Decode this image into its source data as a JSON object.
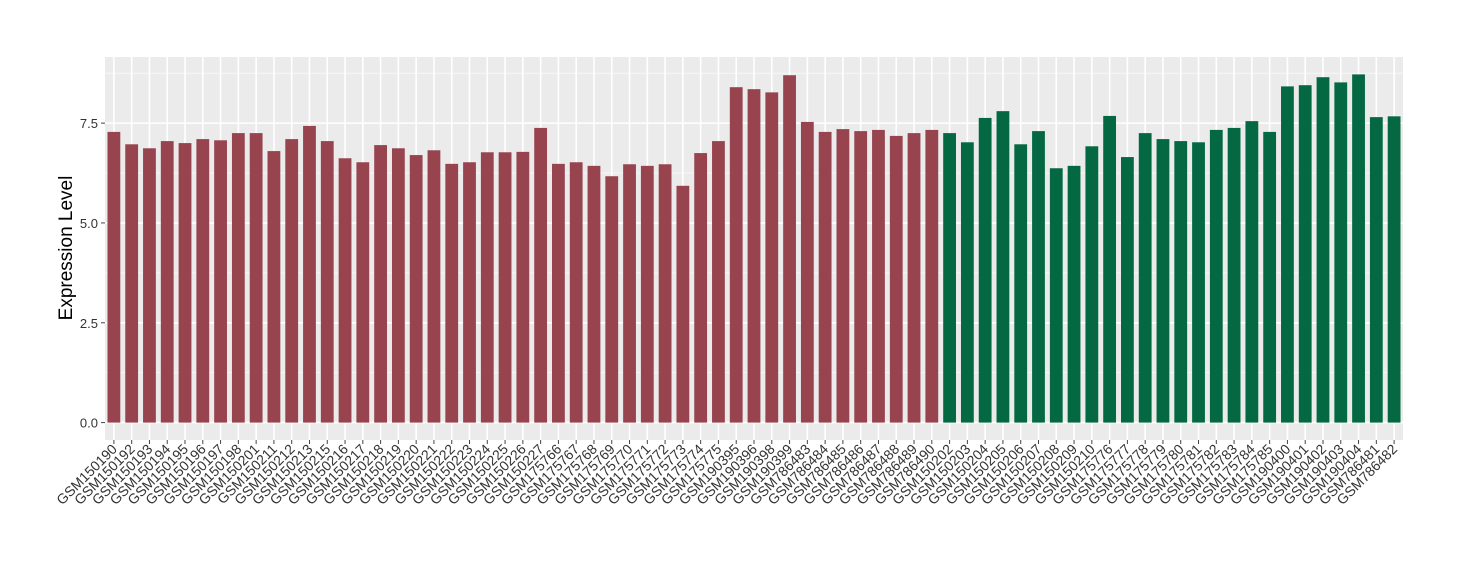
{
  "chart_data": {
    "type": "bar",
    "y_label": "Expression Level",
    "categories": [
      "GSM150190",
      "GSM150192",
      "GSM150193",
      "GSM150194",
      "GSM150195",
      "GSM150196",
      "GSM150197",
      "GSM150198",
      "GSM150201",
      "GSM150211",
      "GSM150212",
      "GSM150213",
      "GSM150215",
      "GSM150216",
      "GSM150217",
      "GSM150218",
      "GSM150219",
      "GSM150220",
      "GSM150221",
      "GSM150222",
      "GSM150223",
      "GSM150224",
      "GSM150225",
      "GSM150226",
      "GSM150227",
      "GSM175766",
      "GSM175767",
      "GSM175768",
      "GSM175769",
      "GSM175770",
      "GSM175771",
      "GSM175772",
      "GSM175773",
      "GSM175774",
      "GSM175775",
      "GSM190395",
      "GSM190396",
      "GSM190398",
      "GSM190399",
      "GSM786483",
      "GSM786484",
      "GSM786485",
      "GSM786486",
      "GSM786487",
      "GSM786488",
      "GSM786489",
      "GSM786490",
      "GSM150202",
      "GSM150203",
      "GSM150204",
      "GSM150205",
      "GSM150206",
      "GSM150207",
      "GSM150208",
      "GSM150209",
      "GSM150210",
      "GSM175776",
      "GSM175777",
      "GSM175778",
      "GSM175779",
      "GSM175780",
      "GSM175781",
      "GSM175782",
      "GSM175783",
      "GSM175784",
      "GSM175785",
      "GSM190400",
      "GSM190401",
      "GSM190402",
      "GSM190403",
      "GSM190404",
      "GSM786481",
      "GSM786482"
    ],
    "series": [
      {
        "color": "#97444f",
        "values": [
          7.28,
          6.97,
          6.87,
          7.05,
          7.0,
          7.1,
          7.07,
          7.25,
          7.25,
          6.8,
          7.1,
          7.43,
          7.05,
          6.62,
          6.52,
          6.95,
          6.87,
          6.7,
          6.82,
          6.48,
          6.52,
          6.77,
          6.77,
          6.78,
          7.38,
          6.48,
          6.52,
          6.43,
          6.17,
          6.47,
          6.43,
          6.47,
          5.93,
          6.75,
          7.05,
          8.4,
          8.35,
          8.27,
          8.7,
          7.53,
          7.28,
          7.35,
          7.3,
          7.33,
          7.18,
          7.25,
          7.33,
          null,
          null,
          null,
          null,
          null,
          null,
          null,
          null,
          null,
          null,
          null,
          null,
          null,
          null,
          null,
          null,
          null,
          null,
          null,
          null,
          null,
          null,
          null,
          null,
          null,
          null
        ]
      },
      {
        "color": "#046943",
        "values": [
          null,
          null,
          null,
          null,
          null,
          null,
          null,
          null,
          null,
          null,
          null,
          null,
          null,
          null,
          null,
          null,
          null,
          null,
          null,
          null,
          null,
          null,
          null,
          null,
          null,
          null,
          null,
          null,
          null,
          null,
          null,
          null,
          null,
          null,
          null,
          null,
          null,
          null,
          null,
          null,
          null,
          null,
          null,
          null,
          null,
          null,
          null,
          7.25,
          7.02,
          7.63,
          7.8,
          6.97,
          7.3,
          6.37,
          6.43,
          6.92,
          7.68,
          6.65,
          7.25,
          7.1,
          7.05,
          7.02,
          7.33,
          7.38,
          7.55,
          7.28,
          8.42,
          8.45,
          8.65,
          8.52,
          8.72,
          7.65,
          7.67
        ]
      }
    ],
    "ylim": [
      -0.436,
      9.156
    ],
    "yticks": [
      {
        "value": 0,
        "label": "0.0"
      },
      2.5,
      {
        "value": 5,
        "label": "5.0"
      },
      7.5
    ],
    "grid": true
  }
}
